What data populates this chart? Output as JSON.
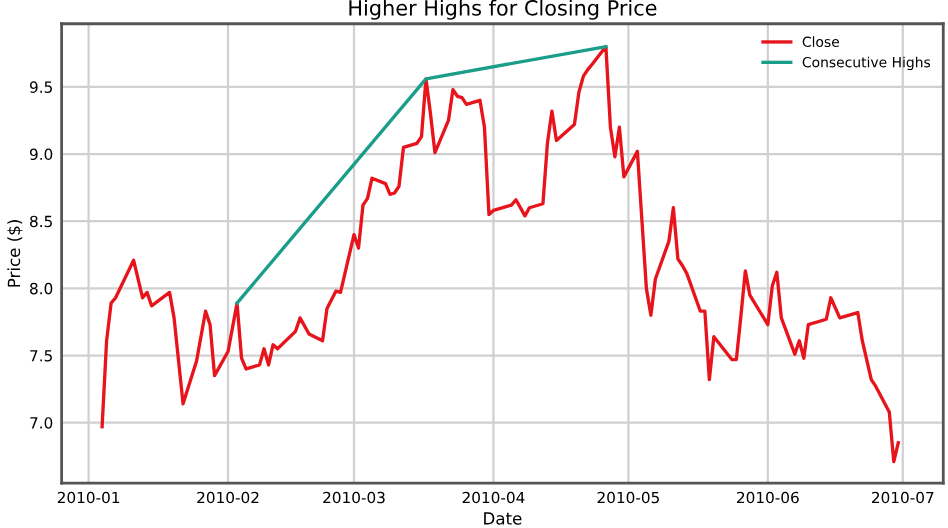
{
  "chart_data": {
    "type": "line",
    "title": "Higher Highs for Closing Price",
    "xlabel": "Date",
    "ylabel": "Price ($)",
    "xlim": [
      "2009-12-26",
      "2010-07-10"
    ],
    "xticks": [
      {
        "value": "2010-01-01",
        "label": "2010-01"
      },
      {
        "value": "2010-02-01",
        "label": "2010-02"
      },
      {
        "value": "2010-03-01",
        "label": "2010-03"
      },
      {
        "value": "2010-04-01",
        "label": "2010-04"
      },
      {
        "value": "2010-05-01",
        "label": "2010-05"
      },
      {
        "value": "2010-06-01",
        "label": "2010-06"
      },
      {
        "value": "2010-07-01",
        "label": "2010-07"
      }
    ],
    "ylim": [
      6.55,
      9.97
    ],
    "yticks": [
      {
        "value": 7,
        "label": "7.0"
      },
      7.5,
      {
        "value": 8,
        "label": "8.0"
      },
      8.5,
      {
        "value": 9,
        "label": "9.0"
      },
      9.5
    ],
    "grid": true,
    "legend": "top right",
    "series": [
      {
        "name": "Close",
        "color": "#e8141c",
        "x": [
          "2010-01-04",
          "2010-01-05",
          "2010-01-06",
          "2010-01-07",
          "2010-01-11",
          "2010-01-13",
          "2010-01-14",
          "2010-01-15",
          "2010-01-19",
          "2010-01-20",
          "2010-01-22",
          "2010-01-25",
          "2010-01-27",
          "2010-01-28",
          "2010-01-29",
          "2010-02-01",
          "2010-02-03",
          "2010-02-04",
          "2010-02-05",
          "2010-02-08",
          "2010-02-09",
          "2010-02-10",
          "2010-02-11",
          "2010-02-12",
          "2010-02-16",
          "2010-02-17",
          "2010-02-19",
          "2010-02-22",
          "2010-02-23",
          "2010-02-25",
          "2010-02-26",
          "2010-03-01",
          "2010-03-02",
          "2010-03-03",
          "2010-03-04",
          "2010-03-05",
          "2010-03-08",
          "2010-03-09",
          "2010-03-10",
          "2010-03-11",
          "2010-03-12",
          "2010-03-15",
          "2010-03-16",
          "2010-03-17",
          "2010-03-18",
          "2010-03-19",
          "2010-03-22",
          "2010-03-23",
          "2010-03-24",
          "2010-03-25",
          "2010-03-26",
          "2010-03-29",
          "2010-03-30",
          "2010-03-31",
          "2010-04-01",
          "2010-04-05",
          "2010-04-06",
          "2010-04-07",
          "2010-04-08",
          "2010-04-09",
          "2010-04-12",
          "2010-04-13",
          "2010-04-14",
          "2010-04-15",
          "2010-04-19",
          "2010-04-20",
          "2010-04-21",
          "2010-04-22",
          "2010-04-23",
          "2010-04-26",
          "2010-04-27",
          "2010-04-28",
          "2010-04-29",
          "2010-04-30",
          "2010-05-03",
          "2010-05-04",
          "2010-05-05",
          "2010-05-06",
          "2010-05-07",
          "2010-05-10",
          "2010-05-11",
          "2010-05-12",
          "2010-05-13",
          "2010-05-14",
          "2010-05-17",
          "2010-05-18",
          "2010-05-19",
          "2010-05-20",
          "2010-05-24",
          "2010-05-25",
          "2010-05-26",
          "2010-05-27",
          "2010-05-28",
          "2010-06-01",
          "2010-06-02",
          "2010-06-03",
          "2010-06-04",
          "2010-06-07",
          "2010-06-08",
          "2010-06-09",
          "2010-06-10",
          "2010-06-14",
          "2010-06-15",
          "2010-06-17",
          "2010-06-21",
          "2010-06-22",
          "2010-06-24",
          "2010-06-25",
          "2010-06-28",
          "2010-06-29",
          "2010-06-30"
        ],
        "values": [
          6.97,
          7.61,
          7.89,
          7.93,
          8.21,
          7.93,
          7.97,
          7.87,
          7.97,
          7.78,
          7.14,
          7.46,
          7.83,
          7.73,
          7.35,
          7.53,
          7.89,
          7.48,
          7.4,
          7.43,
          7.55,
          7.43,
          7.58,
          7.55,
          7.68,
          7.78,
          7.66,
          7.61,
          7.85,
          7.98,
          7.97,
          8.4,
          8.3,
          8.62,
          8.67,
          8.82,
          8.78,
          8.7,
          8.71,
          8.76,
          9.05,
          9.08,
          9.13,
          9.56,
          9.3,
          9.01,
          9.25,
          9.48,
          9.43,
          9.42,
          9.37,
          9.4,
          9.2,
          8.55,
          8.58,
          8.62,
          8.66,
          8.6,
          8.54,
          8.6,
          8.63,
          9.08,
          9.32,
          9.1,
          9.22,
          9.46,
          9.58,
          9.63,
          9.67,
          9.8,
          9.2,
          8.98,
          9.2,
          8.83,
          9.02,
          8.51,
          8.0,
          7.8,
          8.07,
          8.35,
          8.6,
          8.22,
          8.17,
          8.11,
          7.83,
          7.83,
          7.32,
          7.64,
          7.47,
          7.47,
          7.79,
          8.13,
          7.95,
          7.73,
          8.02,
          8.12,
          7.78,
          7.51,
          7.61,
          7.48,
          7.73,
          7.77,
          7.93,
          7.78,
          7.82,
          7.61,
          7.32,
          7.27,
          7.08,
          6.71,
          6.85
        ]
      },
      {
        "name": "Consecutive Highs",
        "color": "#1a9e8a",
        "x": [
          "2010-02-03",
          "2010-03-17",
          "2010-04-26"
        ],
        "values": [
          7.89,
          9.56,
          9.8
        ]
      }
    ]
  }
}
